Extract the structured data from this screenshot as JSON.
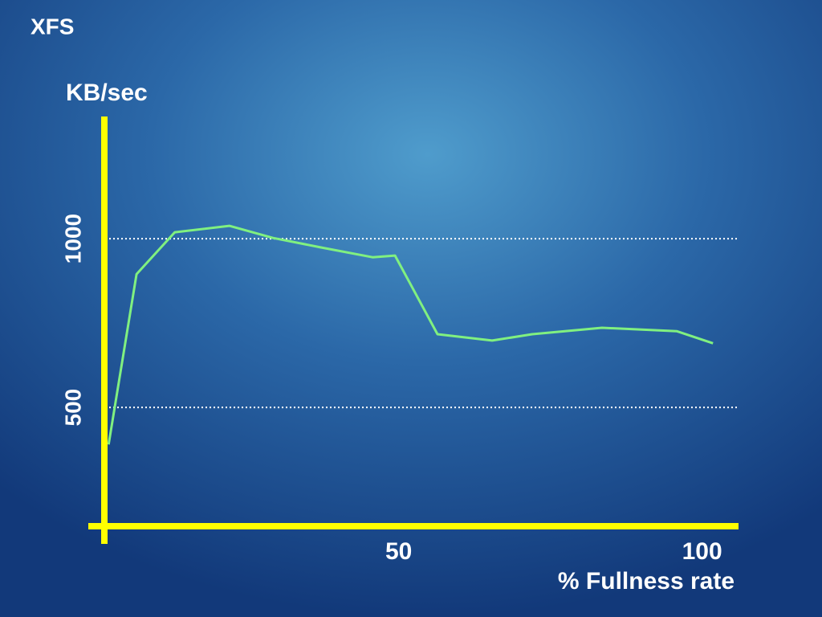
{
  "chart_data": {
    "type": "line",
    "title": "XFS",
    "y_label": "KB/sec",
    "x_label": "% Fullness rate",
    "xlim": [
      1.5,
      106
    ],
    "ylim": [
      148,
      1362
    ],
    "xticks": [
      50,
      100
    ],
    "yticks": [
      500,
      1000
    ],
    "grid": true,
    "axis_color": "#ffff00",
    "series": [
      {
        "color": "#80f080",
        "x": [
          2.2,
          6.8,
          13.1,
          22.1,
          29.3,
          37.2,
          45.7,
          49.4,
          56.4,
          65.4,
          72.0,
          83.5,
          95.8,
          101.8
        ],
        "values": [
          390,
          895,
          1019,
          1038,
          1002,
          974,
          945,
          950,
          717,
          698,
          717,
          736,
          726,
          690
        ]
      }
    ]
  }
}
